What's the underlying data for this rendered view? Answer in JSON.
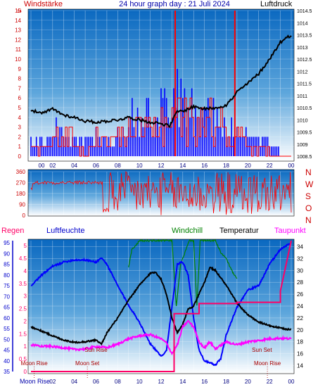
{
  "header": {
    "left_label": "Windstärke",
    "title": "24 hour graph day : 21 Juli 2024",
    "right_label": "Luftdruck"
  },
  "colors": {
    "panel_top": "#0a68c0",
    "panel_bottom": "#ffffff",
    "wind": "#ff0000",
    "gust": "#0000ff",
    "pressure": "#000000",
    "humidity": "#0000ff",
    "windchill": "#008000",
    "temperature": "#000000",
    "dewpoint": "#ff00ff",
    "rain": "#ff0066",
    "axis_red": "#cc0000",
    "axis_blue": "#0000cc",
    "astro": "#aa0000"
  },
  "chart_data": [
    {
      "type": "line",
      "name": "wind-pressure",
      "x_ticks": [
        "00",
        "02",
        "04",
        "06",
        "08",
        "10",
        "12",
        "14",
        "16",
        "18",
        "20",
        "22",
        "00"
      ],
      "y_left_ticks": [
        "0",
        "1",
        "2",
        "3",
        "4",
        "5",
        "6",
        "7",
        "8",
        "9",
        "10",
        "11",
        "12",
        "13",
        "14",
        "15"
      ],
      "y_left_top_tick": "14",
      "ylim_left": [
        0,
        15
      ],
      "y_right_ticks": [
        "1008.5",
        "1009",
        "1009.5",
        "1010",
        "1010.5",
        "1011",
        "1011.5",
        "1012",
        "1012.5",
        "1013",
        "1013.5",
        "1014",
        "1014.5"
      ],
      "ylim_right": [
        1008.5,
        1014.5
      ],
      "wind_hourly": [
        1,
        1,
        2,
        2,
        1,
        1,
        2,
        2,
        2,
        3,
        3,
        3,
        4,
        5,
        4,
        4,
        4,
        4,
        2,
        2,
        1,
        1,
        0,
        0
      ],
      "gust_hourly": [
        2,
        2,
        3,
        2,
        2,
        2,
        2,
        2,
        3,
        5,
        5,
        5,
        6,
        8,
        6,
        5,
        5,
        5,
        3,
        3,
        2,
        2,
        1,
        0
      ],
      "gust_spikes": [
        {
          "x": 13.3,
          "y": 15
        },
        {
          "x": 18.8,
          "y": 15
        }
      ],
      "pressure": {
        "x": [
          0,
          1,
          2,
          3,
          4,
          5,
          6,
          7,
          8,
          9,
          10,
          11,
          12,
          12.8,
          13.5,
          14,
          15,
          16,
          17,
          18,
          18.8,
          19,
          20,
          21,
          22,
          23,
          24
        ],
        "y": [
          1010.4,
          1010.25,
          1010.45,
          1010.2,
          1010.1,
          1009.95,
          1009.9,
          1009.95,
          1010.0,
          1010.1,
          1010.0,
          1009.9,
          1009.85,
          1009.75,
          1010.35,
          1010.35,
          1010.55,
          1010.45,
          1010.5,
          1010.6,
          1011.0,
          1011.15,
          1011.5,
          1011.9,
          1012.5,
          1013.2,
          1013.5
        ]
      }
    },
    {
      "type": "line",
      "name": "wind-direction",
      "x_ticks": [
        "00",
        "02",
        "04",
        "06",
        "08",
        "10",
        "12",
        "14",
        "16",
        "18",
        "20",
        "22",
        "00"
      ],
      "y_left_ticks": [
        "0",
        "90",
        "180",
        "270",
        "360"
      ],
      "ylim": [
        0,
        360
      ],
      "compass": [
        "N",
        "W",
        "S",
        "O",
        "N"
      ]
    },
    {
      "type": "line",
      "name": "temperature-humidity",
      "x_ticks": [
        "00",
        "02",
        "04",
        "06",
        "08",
        "10",
        "12",
        "14",
        "16",
        "18",
        "20",
        "22",
        "00"
      ],
      "labels": {
        "rain": "Regen",
        "humidity": "Luftfeuchte",
        "windchill": "Windchill",
        "temperature": "Temperatur",
        "dewpoint": "Taupunkt"
      },
      "y_rain_ticks": [
        "0",
        "0.5",
        "1",
        "1.5",
        "2",
        "2.5",
        "3",
        "3.5",
        "4",
        "4.5",
        "5"
      ],
      "ylim_rain": [
        0,
        5.2
      ],
      "y_humidity_ticks": [
        "35",
        "40",
        "45",
        "50",
        "55",
        "60",
        "65",
        "70",
        "75",
        "80",
        "85",
        "90",
        "95"
      ],
      "ylim_humidity": [
        35,
        96
      ],
      "y_temp_ticks": [
        "14",
        "16",
        "18",
        "20",
        "22",
        "24",
        "26",
        "28",
        "30",
        "32",
        "34"
      ],
      "ylim_temp": [
        13,
        35
      ],
      "temperature": {
        "x": [
          0,
          1,
          2,
          3,
          4,
          5,
          6,
          6.5,
          7,
          8,
          9,
          10,
          11,
          11.5,
          12,
          12.5,
          13,
          13.5,
          14,
          14.5,
          15,
          15.5,
          16,
          16.5,
          17,
          18,
          19,
          20,
          21,
          22,
          23,
          24
        ],
        "y": [
          20.5,
          19.8,
          19.0,
          18.3,
          17.9,
          18.0,
          18.3,
          17.6,
          19.5,
          22.0,
          25.0,
          27.5,
          29.5,
          29.7,
          28.5,
          26.0,
          22.0,
          19.5,
          21.0,
          23.5,
          24.0,
          26.0,
          28.0,
          30.5,
          30.0,
          27.5,
          24.5,
          22.5,
          21.3,
          20.7,
          20.3,
          20.0
        ]
      },
      "dewpoint": {
        "x": [
          0,
          1,
          2,
          3,
          4,
          5,
          6,
          7,
          8,
          9,
          10,
          11,
          12,
          12.5,
          13,
          13.5,
          14,
          14.5,
          15,
          15.5,
          16,
          16.5,
          17,
          18,
          19,
          20,
          21,
          22,
          23,
          24
        ],
        "y": [
          17.5,
          17.3,
          17.2,
          17.0,
          16.7,
          16.8,
          17.2,
          17.0,
          17.6,
          18.5,
          19.0,
          19.2,
          18.5,
          17.8,
          16.0,
          17.5,
          20.5,
          21.5,
          20.5,
          18.0,
          17.0,
          18.0,
          16.8,
          18.0,
          17.5,
          18.0,
          18.2,
          18.5,
          18.6,
          18.5
        ]
      },
      "humidity": {
        "x": [
          0,
          1,
          2,
          3,
          4,
          5,
          6,
          6.5,
          7,
          8,
          9,
          10,
          11,
          12,
          12.5,
          13,
          13.5,
          14,
          14.5,
          15,
          15.5,
          16,
          17,
          17.5,
          18,
          19,
          20,
          21,
          22,
          23,
          24
        ],
        "y": [
          75,
          80,
          84,
          86,
          87,
          87,
          86,
          88,
          85,
          75,
          66,
          58,
          48,
          42,
          45,
          65,
          85,
          86,
          80,
          60,
          45,
          40,
          38,
          41,
          52,
          65,
          73,
          75,
          85,
          92,
          95
        ]
      },
      "windchill": {
        "x": [
          9.0,
          9.3,
          9.6,
          10.0,
          10.3,
          10.6,
          11.0,
          11.3,
          11.6,
          12.0,
          12.5,
          13.0,
          13.4,
          13.8,
          14.2,
          14.6,
          15.0,
          15.3,
          15.6,
          16.0,
          16.3,
          16.6,
          17.0,
          17.5,
          18.0,
          18.5,
          19.0
        ],
        "y": [
          30.5,
          33.5,
          34.0,
          35.0,
          35.0,
          35.0,
          35.0,
          35.0,
          35.0,
          35.0,
          35.0,
          35.0,
          24.0,
          31.0,
          33.0,
          35.0,
          35.0,
          24.0,
          35.0,
          35.0,
          35.0,
          35.0,
          35.0,
          33.0,
          32.0,
          30.0,
          28.5
        ]
      },
      "rain": {
        "x": [
          0,
          13.2,
          13.2,
          15.5,
          15.5,
          19.0,
          19.0,
          23.0,
          23.0,
          24
        ],
        "y": [
          0,
          0,
          2.3,
          2.3,
          2.7,
          2.7,
          2.75,
          2.75,
          3.2,
          5.2
        ]
      },
      "astro": [
        {
          "label": "Moon Rise",
          "x": 0.3,
          "row": "lower",
          "marker": true
        },
        {
          "label": "Moon Set",
          "x": 5.2,
          "row": "lower",
          "marker": true
        },
        {
          "label": "Sun Rise",
          "x": 6.0,
          "row": "upper",
          "marker": false
        },
        {
          "label": "Sun Set",
          "x": 21.3,
          "row": "upper",
          "marker": false
        },
        {
          "label": "Moon Rise",
          "x": 21.8,
          "row": "lower",
          "marker": true
        }
      ],
      "bottom_corner_label": "Moon Rise"
    }
  ]
}
